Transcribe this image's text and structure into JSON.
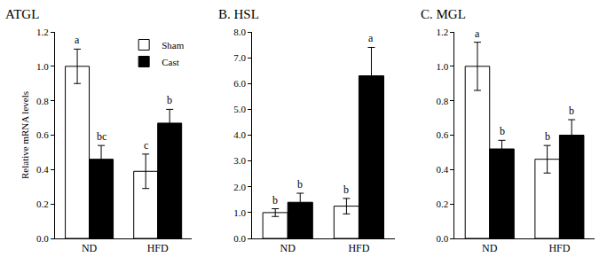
{
  "chart_data": [
    {
      "type": "bar",
      "title": "ATGL",
      "ylabel": "Relative mRNA levels",
      "categories": [
        "ND",
        "HFD"
      ],
      "series": [
        {
          "name": "Sham",
          "color": "#ffffff",
          "values": [
            1.0,
            0.39
          ],
          "errors": [
            0.1,
            0.1
          ],
          "letters": [
            "a",
            "c"
          ]
        },
        {
          "name": "Cast",
          "color": "#000000",
          "values": [
            0.46,
            0.67
          ],
          "errors": [
            0.08,
            0.08
          ],
          "letters": [
            "bc",
            "b"
          ]
        }
      ],
      "ylim": [
        0,
        1.2
      ],
      "yticks": [
        {
          "value": 0,
          "label": "0.0"
        },
        0.2,
        0.4,
        0.6,
        0.8,
        {
          "value": 1,
          "label": "1.0"
        },
        1.2
      ],
      "legend": "top right"
    },
    {
      "type": "bar",
      "title": "B. HSL",
      "categories": [
        "ND",
        "HFD"
      ],
      "series": [
        {
          "name": "Sham",
          "color": "#ffffff",
          "values": [
            1.0,
            1.25
          ],
          "errors": [
            0.15,
            0.3
          ],
          "letters": [
            "b",
            "b"
          ]
        },
        {
          "name": "Cast",
          "color": "#000000",
          "values": [
            1.4,
            6.3
          ],
          "errors": [
            0.35,
            1.1
          ],
          "letters": [
            "b",
            "a"
          ]
        }
      ],
      "ylim": [
        0,
        8
      ],
      "yticks": [
        {
          "value": 0,
          "label": "0.0"
        },
        {
          "value": 1,
          "label": "1.0"
        },
        {
          "value": 2,
          "label": "2.0"
        },
        {
          "value": 3,
          "label": "3.0"
        },
        {
          "value": 4,
          "label": "4.0"
        },
        {
          "value": 5,
          "label": "5.0"
        },
        {
          "value": 6,
          "label": "6.0"
        },
        {
          "value": 7,
          "label": "7.0"
        },
        {
          "value": 8,
          "label": "8.0"
        }
      ]
    },
    {
      "type": "bar",
      "title": "C. MGL",
      "categories": [
        "ND",
        "HFD"
      ],
      "series": [
        {
          "name": "Sham",
          "color": "#ffffff",
          "values": [
            1.0,
            0.46
          ],
          "errors": [
            0.14,
            0.08
          ],
          "letters": [
            "a",
            "b"
          ]
        },
        {
          "name": "Cast",
          "color": "#000000",
          "values": [
            0.52,
            0.6
          ],
          "errors": [
            0.05,
            0.09
          ],
          "letters": [
            "b",
            "b"
          ]
        }
      ],
      "ylim": [
        0,
        1.2
      ],
      "yticks": [
        {
          "value": 0,
          "label": "0.0"
        },
        0.2,
        0.4,
        0.6,
        0.8,
        {
          "value": 1,
          "label": "1.0"
        },
        1.2
      ]
    }
  ]
}
